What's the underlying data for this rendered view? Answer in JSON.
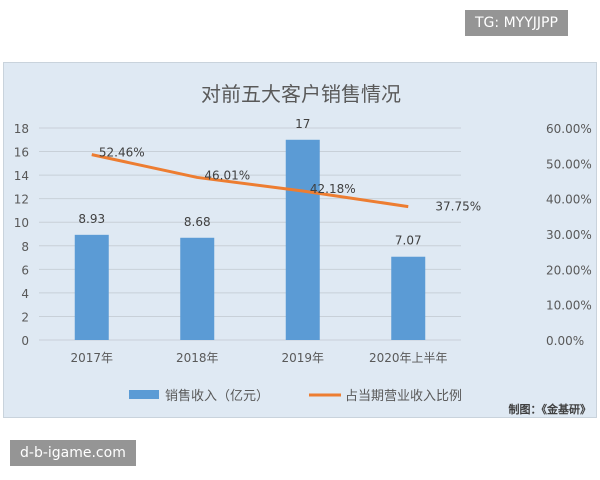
{
  "watermarks": {
    "top": "TG: MYYJJPP",
    "bottom": "d-b-igame.com"
  },
  "credit": "制图：《金基研》",
  "chart_data": {
    "type": "bar+line",
    "title": "对前五大客户销售情况",
    "categories": [
      "2017年",
      "2018年",
      "2019年",
      "2020年上半年"
    ],
    "series": [
      {
        "name": "销售收入（亿元）",
        "type": "bar",
        "axis": "left",
        "values": [
          8.93,
          8.68,
          17,
          7.07
        ],
        "labels": [
          "8.93",
          "8.68",
          "17",
          "7.07"
        ],
        "color": "#5b9bd5"
      },
      {
        "name": "占当期营业收入比例",
        "type": "line",
        "axis": "right",
        "values": [
          52.46,
          46.01,
          42.18,
          37.75
        ],
        "labels": [
          "52.46%",
          "46.01%",
          "42.18%",
          "37.75%"
        ],
        "color": "#ed7d31"
      }
    ],
    "left_axis": {
      "ylim": [
        0,
        18
      ],
      "ticks": [
        "0",
        "2",
        "4",
        "6",
        "8",
        "10",
        "12",
        "14",
        "16",
        "18"
      ]
    },
    "right_axis": {
      "ylim": [
        0,
        60
      ],
      "ticks": [
        "0.00%",
        "10.00%",
        "20.00%",
        "30.00%",
        "40.00%",
        "50.00%",
        "60.00%"
      ]
    },
    "grid": true,
    "legend": "bottom"
  }
}
